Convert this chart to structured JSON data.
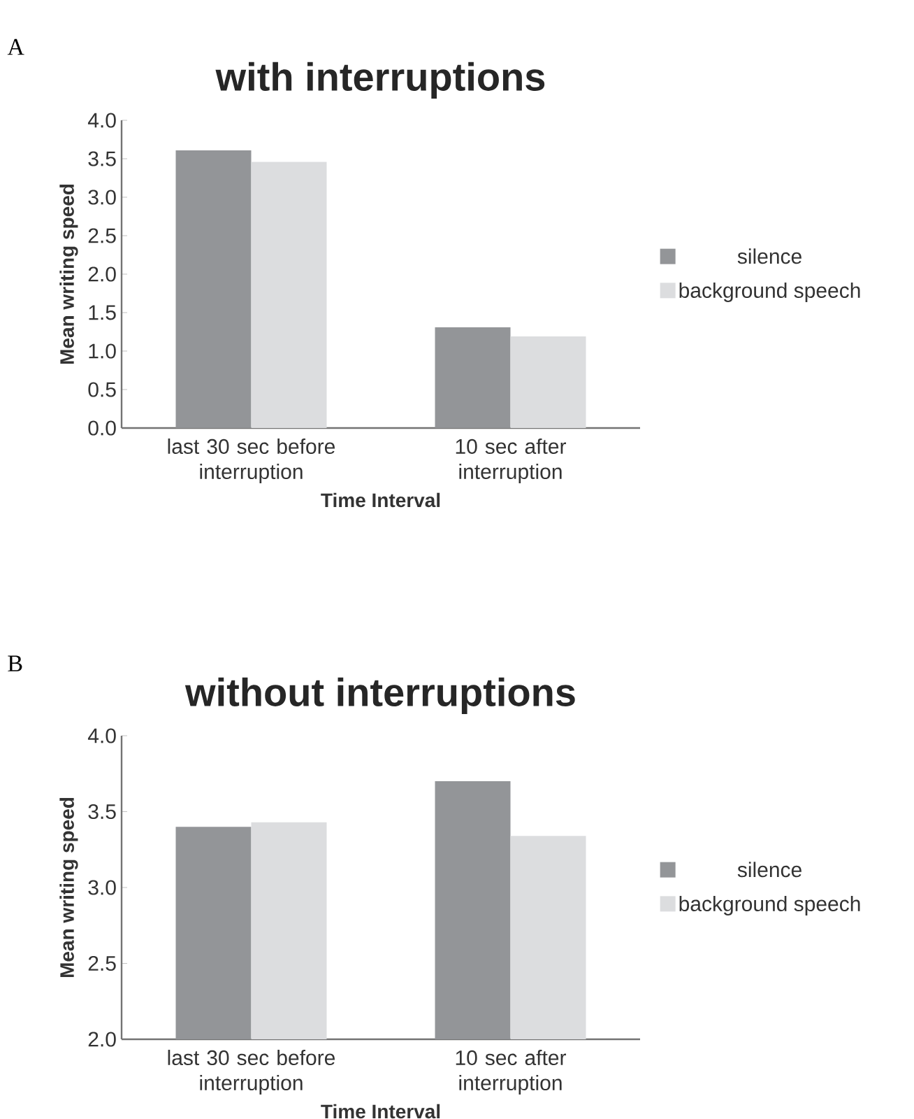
{
  "chart_data": [
    {
      "type": "bar",
      "title": "with interruptions",
      "xlabel": "Time Interval",
      "ylabel": "Mean writing speed",
      "annotations": [
        "A"
      ],
      "categories": [
        "last 30 sec before interruption",
        "10 sec after interruption"
      ],
      "series": [
        {
          "name": "silence",
          "color": "#939598",
          "values": [
            3.61,
            1.31
          ]
        },
        {
          "name": "background speech",
          "color": "#dcdddf",
          "values": [
            3.46,
            1.19
          ]
        }
      ],
      "ylim": [
        0,
        4
      ],
      "yticks": [
        {
          "value": 0,
          "label": "0.0"
        },
        {
          "value": 0.5,
          "label": "0.5"
        },
        {
          "value": 1,
          "label": "1.0"
        },
        {
          "value": 1.5,
          "label": "1.5"
        },
        {
          "value": 2,
          "label": "2.0"
        },
        {
          "value": 2.5,
          "label": "2.5"
        },
        {
          "value": 3,
          "label": "3.0"
        },
        {
          "value": 3.5,
          "label": "3.5"
        },
        {
          "value": 4,
          "label": "4.0"
        }
      ],
      "legend": "right"
    },
    {
      "type": "bar",
      "title": "without interruptions",
      "xlabel": "Time Interval",
      "ylabel": "Mean writing speed",
      "annotations": [
        "B"
      ],
      "categories": [
        "last 30 sec before interruption",
        "10 sec after interruption"
      ],
      "series": [
        {
          "name": "silence",
          "color": "#939598",
          "values": [
            3.4,
            3.7
          ]
        },
        {
          "name": "background speech",
          "color": "#dcdddf",
          "values": [
            3.43,
            3.34
          ]
        }
      ],
      "ylim": [
        2,
        4
      ],
      "yticks": [
        {
          "value": 2,
          "label": "2.0"
        },
        {
          "value": 2.5,
          "label": "2.5"
        },
        {
          "value": 3,
          "label": "3.0"
        },
        {
          "value": 3.5,
          "label": "3.5"
        },
        {
          "value": 4,
          "label": "4.0"
        }
      ],
      "legend": "right"
    }
  ]
}
